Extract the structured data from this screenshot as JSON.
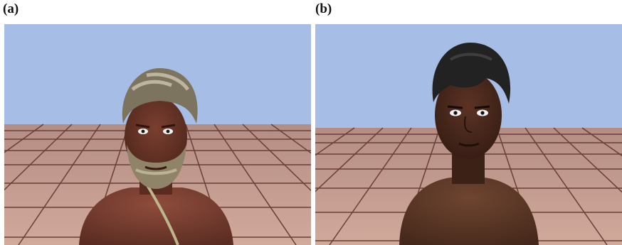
{
  "figure": {
    "panels": [
      {
        "label": "(a)",
        "subject": "older-man-avatar"
      },
      {
        "label": "(b)",
        "subject": "young-man-avatar"
      }
    ]
  },
  "colors": {
    "sky": "#a6bde6",
    "floor": "#c49a8e",
    "grid": "#6a3f36",
    "skin_a": "#5e2f24",
    "skin_b": "#4a2a1f",
    "hair_a": "#7d7460",
    "hair_b": "#222222"
  }
}
